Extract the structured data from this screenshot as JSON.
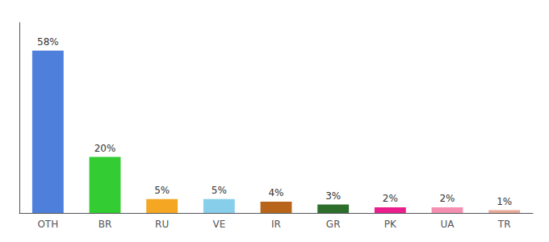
{
  "chart_data": {
    "type": "bar",
    "categories": [
      "OTH",
      "BR",
      "RU",
      "VE",
      "IR",
      "GR",
      "PK",
      "UA",
      "TR"
    ],
    "values": [
      58,
      20,
      5,
      5,
      4,
      3,
      2,
      2,
      1
    ],
    "value_labels": [
      "58%",
      "20%",
      "5%",
      "5%",
      "4%",
      "3%",
      "2%",
      "2%",
      "1%"
    ],
    "colors": [
      "#4d7fdb",
      "#33cc33",
      "#f5a623",
      "#87ceeb",
      "#b8651b",
      "#2d6e2d",
      "#e91e8c",
      "#f48fb1",
      "#e8a898"
    ],
    "ylim": [
      0,
      68
    ],
    "data_labels": true,
    "tick_labels": "x",
    "grid": false
  }
}
